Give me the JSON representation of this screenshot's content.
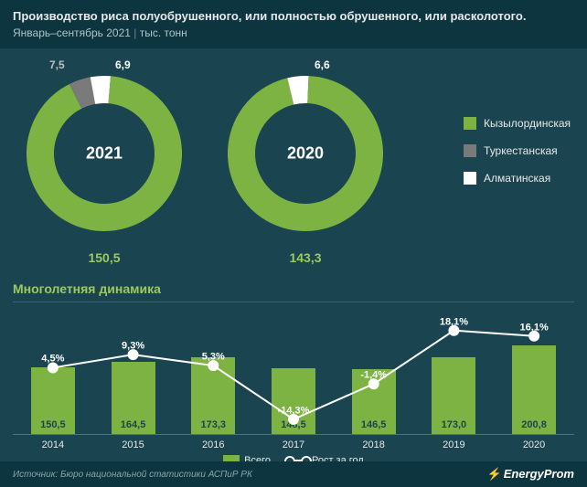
{
  "header": {
    "title": "Производство риса полуобрушенного, или полностью обрушенного, или расколотого.",
    "subtitle_period": "Январь–сентябрь 2021",
    "subtitle_unit": "тыс. тонн"
  },
  "colors": {
    "bg": "#1a4550",
    "header_bg": "#0d3540",
    "green": "#7db342",
    "gray": "#7a7a7a",
    "white": "#ffffff",
    "legend_green_sq": "#7db342",
    "legend_gray_sq": "#7a7a7a",
    "legend_white_sq": "#ffffff"
  },
  "donut1": {
    "year": "2021",
    "slices": [
      {
        "label": "Кызылординская",
        "value": 150.5,
        "color": "#7db342"
      },
      {
        "label": "Туркестанская",
        "value": 7.5,
        "color": "#7a7a7a"
      },
      {
        "label": "Алматинская",
        "value": 6.9,
        "color": "#ffffff"
      }
    ],
    "label_gray": "7,5",
    "label_white": "6,9",
    "bottom": "150,5",
    "thickness": 30
  },
  "donut2": {
    "year": "2020",
    "slices": [
      {
        "label": "Кызылординская",
        "value": 143.3,
        "color": "#7db342"
      },
      {
        "label": "Алматинская",
        "value": 6.6,
        "color": "#ffffff"
      }
    ],
    "label_white": "6,6",
    "bottom": "143,3",
    "thickness": 30
  },
  "donut_legend": [
    {
      "color": "#7db342",
      "text": "Кызылординская"
    },
    {
      "color": "#7a7a7a",
      "text": "Туркестанская"
    },
    {
      "color": "#ffffff",
      "text": "Алматинская"
    }
  ],
  "dynamics": {
    "title": "Многолетняя динамика",
    "years": [
      "2014",
      "2015",
      "2016",
      "2017",
      "2018",
      "2019",
      "2020"
    ],
    "bar_values": [
      150.5,
      164.5,
      173.3,
      148.5,
      146.5,
      173.0,
      200.8
    ],
    "bar_labels": [
      "150,5",
      "164,5",
      "173,3",
      "148,5",
      "146,5",
      "173,0",
      "200,8"
    ],
    "line_pct": [
      4.5,
      9.3,
      5.3,
      -14.3,
      -1.4,
      18.1,
      16.1
    ],
    "line_labels": [
      "4,5%",
      "9,3%",
      "5,3%",
      "-14,3%",
      "-1,4%",
      "18,1%",
      "16,1%"
    ],
    "bar_color": "#7db342",
    "line_color": "#ffffff",
    "marker_fill": "#ffffff",
    "marker_stroke": "#1a4550",
    "y_max": 210,
    "legend_bar": "Всего",
    "legend_line": "Рост за год"
  },
  "footer": {
    "source": "Источник: Бюро национальной статистики АСПиР РК",
    "brand": "EnergyProm"
  }
}
